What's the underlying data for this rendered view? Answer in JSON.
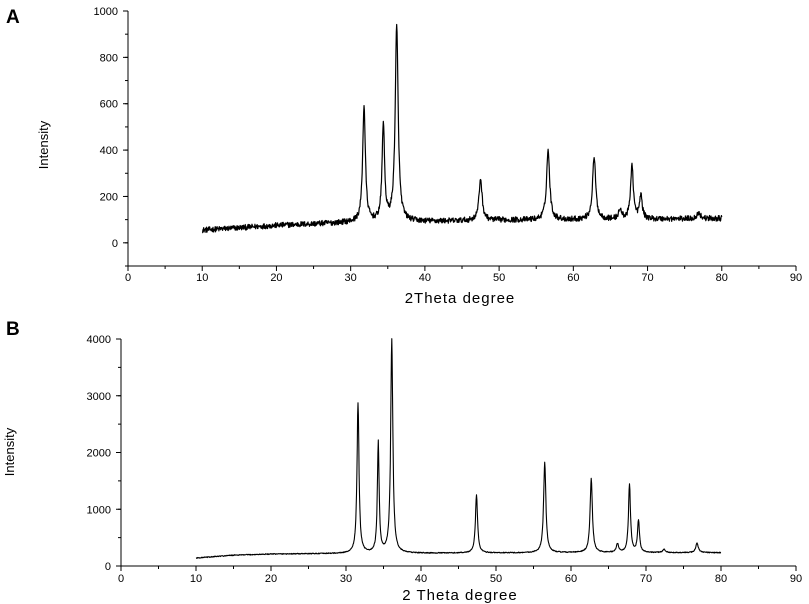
{
  "chart_data": [
    {
      "panel_label": "A",
      "type": "line",
      "title": "",
      "xlabel": "2Theta degree",
      "ylabel": "Intensity",
      "xlim": [
        0,
        90
      ],
      "ylim": [
        -100,
        1000
      ],
      "x_ticks": [
        0,
        10,
        20,
        30,
        40,
        50,
        60,
        70,
        80,
        90
      ],
      "y_ticks": [
        0,
        200,
        400,
        600,
        800,
        1000
      ],
      "x_range": [
        10,
        80
      ],
      "baseline": [
        [
          10,
          55
        ],
        [
          20,
          75
        ],
        [
          30,
          88
        ],
        [
          40,
          92
        ],
        [
          50,
          98
        ],
        [
          60,
          100
        ],
        [
          70,
          102
        ],
        [
          80,
          105
        ]
      ],
      "noise": 12,
      "peaks": [
        {
          "x": 31.8,
          "y": 500,
          "w": 0.22
        },
        {
          "x": 34.4,
          "y": 420,
          "w": 0.2
        },
        {
          "x": 36.2,
          "y": 840,
          "w": 0.24
        },
        {
          "x": 47.5,
          "y": 180,
          "w": 0.25
        },
        {
          "x": 56.6,
          "y": 300,
          "w": 0.25
        },
        {
          "x": 62.8,
          "y": 270,
          "w": 0.25
        },
        {
          "x": 66.3,
          "y": 40,
          "w": 0.25
        },
        {
          "x": 67.9,
          "y": 235,
          "w": 0.22
        },
        {
          "x": 69.1,
          "y": 100,
          "w": 0.22
        },
        {
          "x": 76.9,
          "y": 25,
          "w": 0.3
        }
      ],
      "color": "#000000"
    },
    {
      "panel_label": "B",
      "type": "line",
      "title": "",
      "xlabel": "2 Theta degree",
      "ylabel": "Intensity",
      "xlim": [
        0,
        90
      ],
      "ylim": [
        0,
        4000
      ],
      "x_ticks": [
        0,
        10,
        20,
        30,
        40,
        50,
        60,
        70,
        80,
        90
      ],
      "y_ticks": [
        0,
        1000,
        2000,
        3000,
        4000
      ],
      "x_range": [
        10,
        80
      ],
      "baseline": [
        [
          10,
          140
        ],
        [
          15,
          190
        ],
        [
          20,
          210
        ],
        [
          30,
          220
        ],
        [
          40,
          225
        ],
        [
          50,
          230
        ],
        [
          60,
          235
        ],
        [
          70,
          235
        ],
        [
          80,
          235
        ]
      ],
      "noise": 8,
      "peaks": [
        {
          "x": 31.6,
          "y": 2650,
          "w": 0.16
        },
        {
          "x": 34.3,
          "y": 1950,
          "w": 0.14
        },
        {
          "x": 36.1,
          "y": 3770,
          "w": 0.17
        },
        {
          "x": 47.4,
          "y": 1020,
          "w": 0.17
        },
        {
          "x": 56.5,
          "y": 1600,
          "w": 0.18
        },
        {
          "x": 62.7,
          "y": 1310,
          "w": 0.18
        },
        {
          "x": 66.2,
          "y": 150,
          "w": 0.18
        },
        {
          "x": 67.8,
          "y": 1200,
          "w": 0.16
        },
        {
          "x": 69.0,
          "y": 560,
          "w": 0.16
        },
        {
          "x": 72.4,
          "y": 60,
          "w": 0.2
        },
        {
          "x": 76.8,
          "y": 170,
          "w": 0.2
        }
      ],
      "color": "#000000"
    }
  ]
}
